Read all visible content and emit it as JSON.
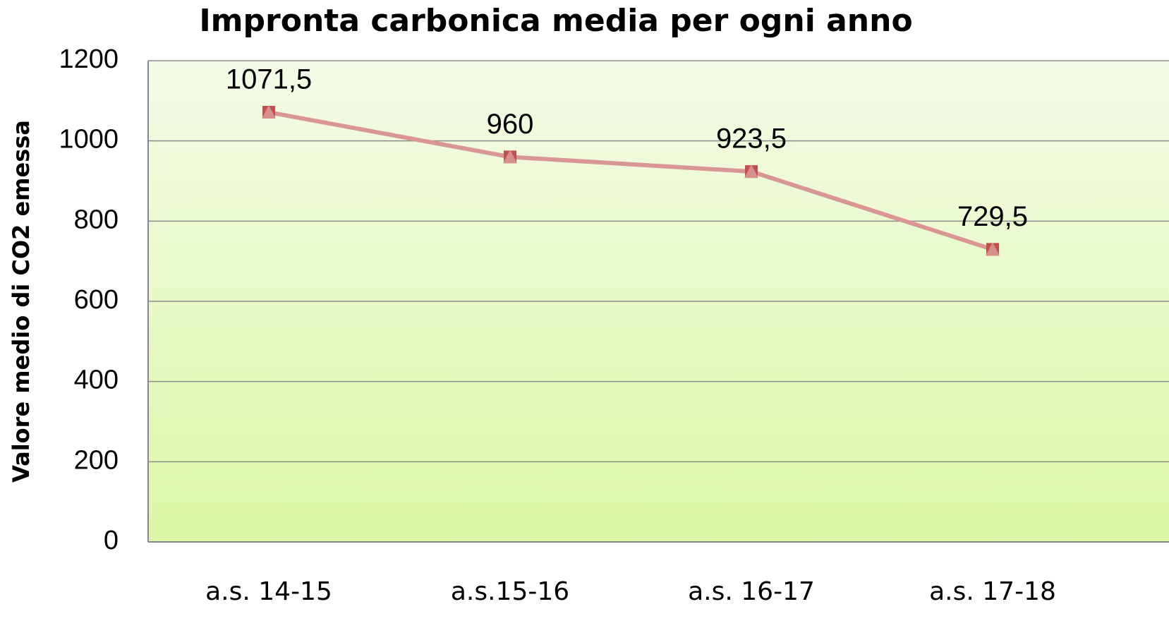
{
  "chart_data": {
    "type": "line",
    "title": "Impronta carbonica media per ogni anno",
    "y_label": "Valore medio di CO2 emessa",
    "categories": [
      "a.s. 14-15",
      "a.s.15-16",
      "a.s. 16-17",
      "a.s. 17-18"
    ],
    "values": [
      1071.5,
      960,
      923.5,
      729.5
    ],
    "value_labels": [
      "1071,5",
      "960",
      "923,5",
      "729,5"
    ],
    "color": "#d99694",
    "marker_color": "#c0504d",
    "ylim": [
      0,
      1200
    ],
    "yticks": [
      0,
      200,
      400,
      600,
      800,
      1000,
      1200
    ],
    "grid": true
  }
}
